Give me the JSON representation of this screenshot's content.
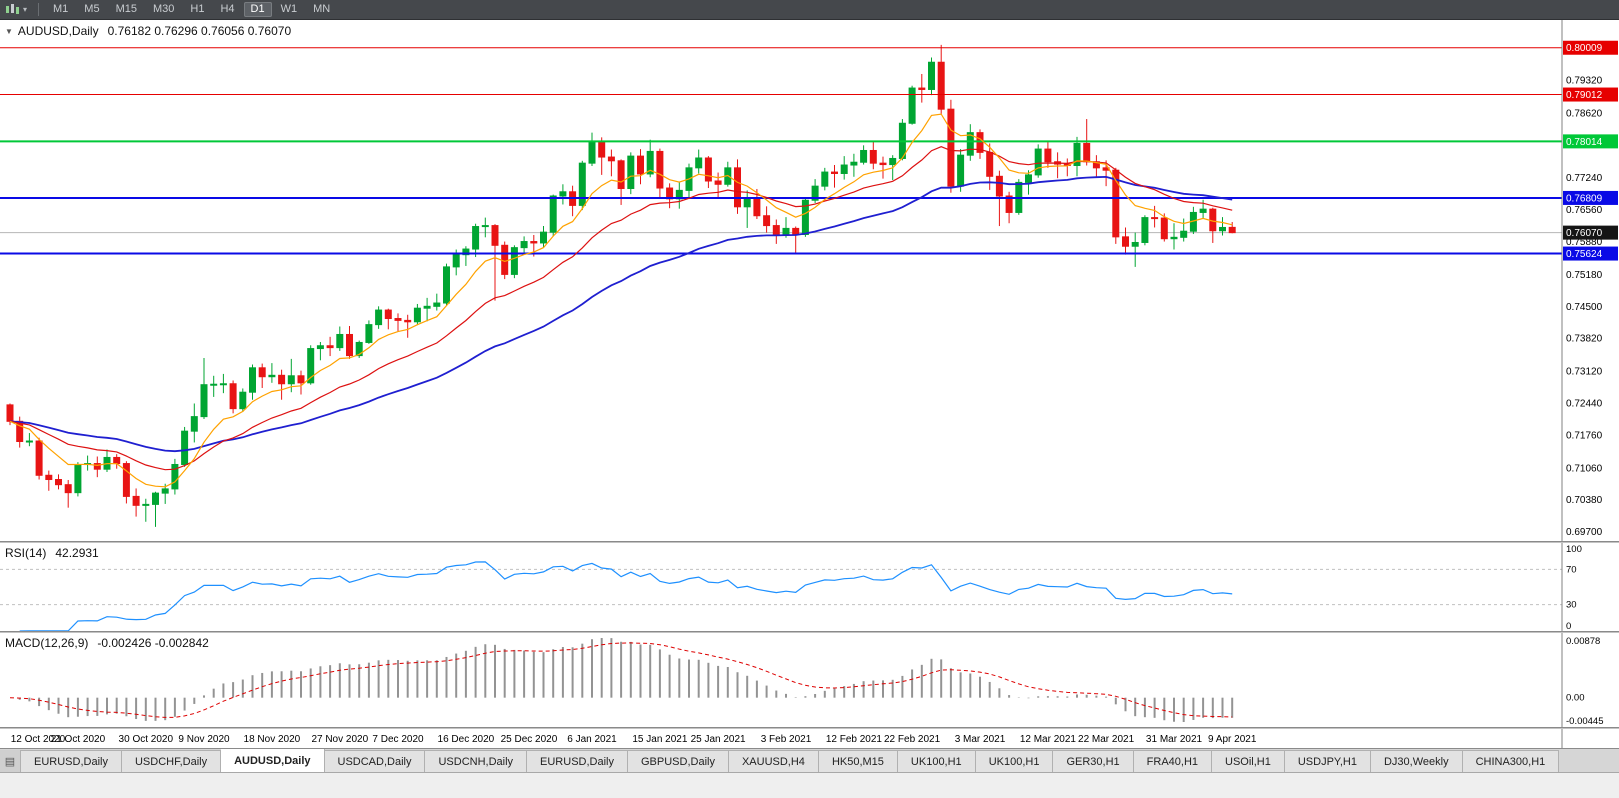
{
  "toolbar": {
    "timeframes": [
      "M1",
      "M5",
      "M15",
      "M30",
      "H1",
      "H4",
      "D1",
      "W1",
      "MN"
    ],
    "active": "D1"
  },
  "chart_data": {
    "type": "candlestick",
    "title": {
      "symbol": "AUDUSD,Daily",
      "ohlc": "0.76182 0.76296 0.76056 0.76070"
    },
    "price_axis": {
      "ticks": [
        0.7932,
        0.7862,
        0.7724,
        0.7656,
        0.7588,
        0.7518,
        0.745,
        0.7382,
        0.7312,
        0.7244,
        0.7176,
        0.7106,
        0.7038,
        0.697
      ],
      "current": {
        "price": 0.7607,
        "label": "0.76070"
      }
    },
    "hlines": [
      {
        "price": 0.80009,
        "label": "0.80009",
        "color": "line_red",
        "w": 1
      },
      {
        "price": 0.79012,
        "label": "0.79012",
        "color": "line_red",
        "w": 1
      },
      {
        "price": 0.78014,
        "label": "0.78014",
        "color": "line_green",
        "w": 2
      },
      {
        "price": 0.76809,
        "label": "0.76809",
        "color": "line_blue",
        "w": 2
      },
      {
        "price": 0.75624,
        "label": "0.75624",
        "color": "line_blue",
        "w": 2
      }
    ],
    "date_axis": [
      {
        "t": "12 Oct 2020",
        "i": 0
      },
      {
        "t": "21 Oct 2020",
        "i": 7
      },
      {
        "t": "30 Oct 2020",
        "i": 14
      },
      {
        "t": "9 Nov 2020",
        "i": 20
      },
      {
        "t": "18 Nov 2020",
        "i": 27
      },
      {
        "t": "27 Nov 2020",
        "i": 34
      },
      {
        "t": "7 Dec 2020",
        "i": 40
      },
      {
        "t": "16 Dec 2020",
        "i": 47
      },
      {
        "t": "25 Dec 2020",
        "i": 53.5
      },
      {
        "t": "6 Jan 2021",
        "i": 60
      },
      {
        "t": "15 Jan 2021",
        "i": 67
      },
      {
        "t": "25 Jan 2021",
        "i": 73
      },
      {
        "t": "3 Feb 2021",
        "i": 80
      },
      {
        "t": "12 Feb 2021",
        "i": 87
      },
      {
        "t": "22 Feb 2021",
        "i": 93
      },
      {
        "t": "3 Mar 2021",
        "i": 100
      },
      {
        "t": "12 Mar 2021",
        "i": 107
      },
      {
        "t": "22 Mar 2021",
        "i": 113
      },
      {
        "t": "31 Mar 2021",
        "i": 120
      },
      {
        "t": "9 Apr 2021",
        "i": 126
      }
    ],
    "colors": {
      "up": "#00A532",
      "down": "#E81414",
      "ma_fast": "#FFA200",
      "ma_med": "#DD1111",
      "ma_slow": "#1F1FD0",
      "rsi": "#1E90FF",
      "macd_hist": "#939393",
      "macd_signal": "#DD0000",
      "line_red": "#E60000",
      "line_green": "#00C838",
      "line_blue": "#0A0AE6",
      "current": "#151515"
    },
    "candles": [
      [
        0.724,
        0.7243,
        0.7197,
        0.7205
      ],
      [
        0.7205,
        0.7215,
        0.7149,
        0.7162
      ],
      [
        0.7162,
        0.718,
        0.7152,
        0.7163
      ],
      [
        0.7163,
        0.717,
        0.7081,
        0.709
      ],
      [
        0.709,
        0.71,
        0.7057,
        0.7081
      ],
      [
        0.7081,
        0.7092,
        0.706,
        0.707
      ],
      [
        0.707,
        0.708,
        0.7021,
        0.7053
      ],
      [
        0.7053,
        0.7118,
        0.7045,
        0.7113
      ],
      [
        0.7113,
        0.7132,
        0.71,
        0.7115
      ],
      [
        0.7115,
        0.713,
        0.7086,
        0.7103
      ],
      [
        0.7103,
        0.7145,
        0.7097,
        0.7128
      ],
      [
        0.7128,
        0.7135,
        0.7104,
        0.7115
      ],
      [
        0.7115,
        0.712,
        0.703,
        0.7045
      ],
      [
        0.7045,
        0.7062,
        0.7002,
        0.7026
      ],
      [
        0.7026,
        0.704,
        0.6991,
        0.7028
      ],
      [
        0.7028,
        0.7055,
        0.698,
        0.7052
      ],
      [
        0.7052,
        0.7072,
        0.7029,
        0.7061
      ],
      [
        0.7061,
        0.7125,
        0.7049,
        0.7113
      ],
      [
        0.7113,
        0.7193,
        0.7108,
        0.7184
      ],
      [
        0.7184,
        0.7243,
        0.716,
        0.7215
      ],
      [
        0.7215,
        0.734,
        0.721,
        0.7283
      ],
      [
        0.7283,
        0.7302,
        0.7257,
        0.7284
      ],
      [
        0.7284,
        0.7306,
        0.7265,
        0.7285
      ],
      [
        0.7285,
        0.7292,
        0.7222,
        0.7232
      ],
      [
        0.7232,
        0.7275,
        0.7225,
        0.7267
      ],
      [
        0.7267,
        0.7326,
        0.7251,
        0.7319
      ],
      [
        0.7319,
        0.7328,
        0.7276,
        0.73
      ],
      [
        0.73,
        0.7329,
        0.7287,
        0.7303
      ],
      [
        0.7303,
        0.7315,
        0.7251,
        0.7285
      ],
      [
        0.7285,
        0.7338,
        0.7267,
        0.7302
      ],
      [
        0.7302,
        0.7313,
        0.7262,
        0.7287
      ],
      [
        0.7287,
        0.7367,
        0.7283,
        0.736
      ],
      [
        0.736,
        0.7374,
        0.7335,
        0.7366
      ],
      [
        0.7366,
        0.7385,
        0.7344,
        0.7362
      ],
      [
        0.7362,
        0.7407,
        0.7355,
        0.739
      ],
      [
        0.739,
        0.7408,
        0.7338,
        0.7345
      ],
      [
        0.7345,
        0.7377,
        0.734,
        0.7373
      ],
      [
        0.7373,
        0.742,
        0.737,
        0.7411
      ],
      [
        0.7411,
        0.745,
        0.7402,
        0.7442
      ],
      [
        0.7442,
        0.7445,
        0.7401,
        0.7424
      ],
      [
        0.7424,
        0.7435,
        0.7396,
        0.742
      ],
      [
        0.742,
        0.7432,
        0.7383,
        0.7417
      ],
      [
        0.7417,
        0.7455,
        0.741,
        0.7446
      ],
      [
        0.7446,
        0.7468,
        0.7418,
        0.745
      ],
      [
        0.745,
        0.7477,
        0.7441,
        0.7457
      ],
      [
        0.7457,
        0.7541,
        0.7451,
        0.7534
      ],
      [
        0.7534,
        0.7571,
        0.7516,
        0.756
      ],
      [
        0.756,
        0.7578,
        0.7536,
        0.7572
      ],
      [
        0.7572,
        0.7626,
        0.7555,
        0.762
      ],
      [
        0.762,
        0.7639,
        0.7597,
        0.7622
      ],
      [
        0.7622,
        0.7625,
        0.7462,
        0.758
      ],
      [
        0.758,
        0.7588,
        0.7508,
        0.7518
      ],
      [
        0.7518,
        0.758,
        0.751,
        0.7575
      ],
      [
        0.7575,
        0.7599,
        0.7561,
        0.7588
      ],
      [
        0.7588,
        0.7602,
        0.7556,
        0.7585
      ],
      [
        0.7585,
        0.7621,
        0.7575,
        0.7608
      ],
      [
        0.7608,
        0.7688,
        0.7599,
        0.7685
      ],
      [
        0.7685,
        0.771,
        0.7667,
        0.7694
      ],
      [
        0.7694,
        0.7707,
        0.7642,
        0.7665
      ],
      [
        0.7665,
        0.776,
        0.7655,
        0.7755
      ],
      [
        0.7755,
        0.782,
        0.7749,
        0.7801
      ],
      [
        0.7801,
        0.781,
        0.773,
        0.7768
      ],
      [
        0.7768,
        0.7784,
        0.7727,
        0.776
      ],
      [
        0.776,
        0.7763,
        0.7666,
        0.7701
      ],
      [
        0.7701,
        0.7778,
        0.7689,
        0.777
      ],
      [
        0.777,
        0.7785,
        0.771,
        0.7732
      ],
      [
        0.7732,
        0.7805,
        0.7725,
        0.778
      ],
      [
        0.778,
        0.7786,
        0.7679,
        0.7702
      ],
      [
        0.7702,
        0.7712,
        0.7659,
        0.7679
      ],
      [
        0.7679,
        0.7714,
        0.7658,
        0.7697
      ],
      [
        0.7697,
        0.7754,
        0.7683,
        0.7745
      ],
      [
        0.7745,
        0.7784,
        0.7733,
        0.7766
      ],
      [
        0.7766,
        0.777,
        0.7702,
        0.7717
      ],
      [
        0.7717,
        0.7735,
        0.7681,
        0.771
      ],
      [
        0.771,
        0.7758,
        0.7705,
        0.7745
      ],
      [
        0.7745,
        0.7763,
        0.7647,
        0.7662
      ],
      [
        0.7662,
        0.7697,
        0.7617,
        0.7679
      ],
      [
        0.7679,
        0.77,
        0.7636,
        0.7643
      ],
      [
        0.7643,
        0.7663,
        0.7607,
        0.7622
      ],
      [
        0.7622,
        0.7635,
        0.7583,
        0.7603
      ],
      [
        0.7603,
        0.764,
        0.7596,
        0.7616
      ],
      [
        0.7616,
        0.762,
        0.7564,
        0.7603
      ],
      [
        0.7603,
        0.7682,
        0.7598,
        0.7676
      ],
      [
        0.7676,
        0.7721,
        0.767,
        0.7706
      ],
      [
        0.7706,
        0.7745,
        0.7697,
        0.7736
      ],
      [
        0.7736,
        0.7751,
        0.7703,
        0.7733
      ],
      [
        0.7733,
        0.777,
        0.772,
        0.7751
      ],
      [
        0.7751,
        0.7775,
        0.7726,
        0.7757
      ],
      [
        0.7757,
        0.7793,
        0.7752,
        0.7782
      ],
      [
        0.7782,
        0.7802,
        0.7742,
        0.7755
      ],
      [
        0.7755,
        0.7769,
        0.7722,
        0.7752
      ],
      [
        0.7752,
        0.7772,
        0.7719,
        0.7765
      ],
      [
        0.7765,
        0.7849,
        0.7761,
        0.784
      ],
      [
        0.784,
        0.792,
        0.7837,
        0.7915
      ],
      [
        0.7915,
        0.7945,
        0.7884,
        0.7912
      ],
      [
        0.7912,
        0.798,
        0.79,
        0.797
      ],
      [
        0.797,
        0.8007,
        0.786,
        0.787
      ],
      [
        0.787,
        0.789,
        0.7692,
        0.7706
      ],
      [
        0.7706,
        0.7785,
        0.7694,
        0.7772
      ],
      [
        0.7772,
        0.7838,
        0.776,
        0.782
      ],
      [
        0.782,
        0.7827,
        0.7764,
        0.7778
      ],
      [
        0.7778,
        0.7797,
        0.7698,
        0.7727
      ],
      [
        0.7727,
        0.7739,
        0.7621,
        0.7685
      ],
      [
        0.7685,
        0.7694,
        0.7627,
        0.765
      ],
      [
        0.765,
        0.7721,
        0.7645,
        0.7714
      ],
      [
        0.7714,
        0.774,
        0.7688,
        0.773
      ],
      [
        0.773,
        0.7795,
        0.7724,
        0.7785
      ],
      [
        0.7785,
        0.78,
        0.7745,
        0.7758
      ],
      [
        0.7758,
        0.7778,
        0.7723,
        0.7753
      ],
      [
        0.7753,
        0.7765,
        0.7727,
        0.775
      ],
      [
        0.775,
        0.7811,
        0.7727,
        0.7797
      ],
      [
        0.7797,
        0.7849,
        0.775,
        0.7758
      ],
      [
        0.7758,
        0.7772,
        0.7724,
        0.7745
      ],
      [
        0.7745,
        0.7761,
        0.7706,
        0.774
      ],
      [
        0.774,
        0.7745,
        0.7583,
        0.7598
      ],
      [
        0.7598,
        0.7618,
        0.756,
        0.7578
      ],
      [
        0.7578,
        0.7607,
        0.7534,
        0.7586
      ],
      [
        0.7586,
        0.7644,
        0.758,
        0.7639
      ],
      [
        0.7639,
        0.7664,
        0.7618,
        0.7638
      ],
      [
        0.7638,
        0.7648,
        0.7588,
        0.7594
      ],
      [
        0.7594,
        0.7627,
        0.7571,
        0.7597
      ],
      [
        0.7597,
        0.7637,
        0.7588,
        0.761
      ],
      [
        0.761,
        0.7662,
        0.7604,
        0.765
      ],
      [
        0.765,
        0.7677,
        0.7637,
        0.7657
      ],
      [
        0.7657,
        0.766,
        0.7585,
        0.7611
      ],
      [
        0.7611,
        0.764,
        0.7601,
        0.7618
      ],
      [
        0.76182,
        0.76296,
        0.76056,
        0.7607
      ]
    ]
  },
  "rsi": {
    "label": "RSI(14)",
    "value": "42.2931",
    "period": 14,
    "levels": [
      100,
      70,
      30,
      0
    ]
  },
  "macd": {
    "label": "MACD(12,26,9)",
    "values": "-0.002426 -0.002842",
    "fast": 12,
    "slow": 26,
    "signal": 9,
    "axis": {
      "top": "0.00878",
      "zero": "0.00",
      "bottom": "-0.00445"
    }
  },
  "tabs": {
    "items": [
      "EURUSD,Daily",
      "USDCHF,Daily",
      "AUDUSD,Daily",
      "USDCAD,Daily",
      "USDCNH,Daily",
      "EURUSD,Daily",
      "GBPUSD,Daily",
      "XAUUSD,H4",
      "HK50,M15",
      "UK100,H1",
      "UK100,H1",
      "GER30,H1",
      "FRA40,H1",
      "USOil,H1",
      "USDJPY,H1",
      "DJ30,Weekly",
      "CHINA300,H1"
    ],
    "active_index": 2
  }
}
